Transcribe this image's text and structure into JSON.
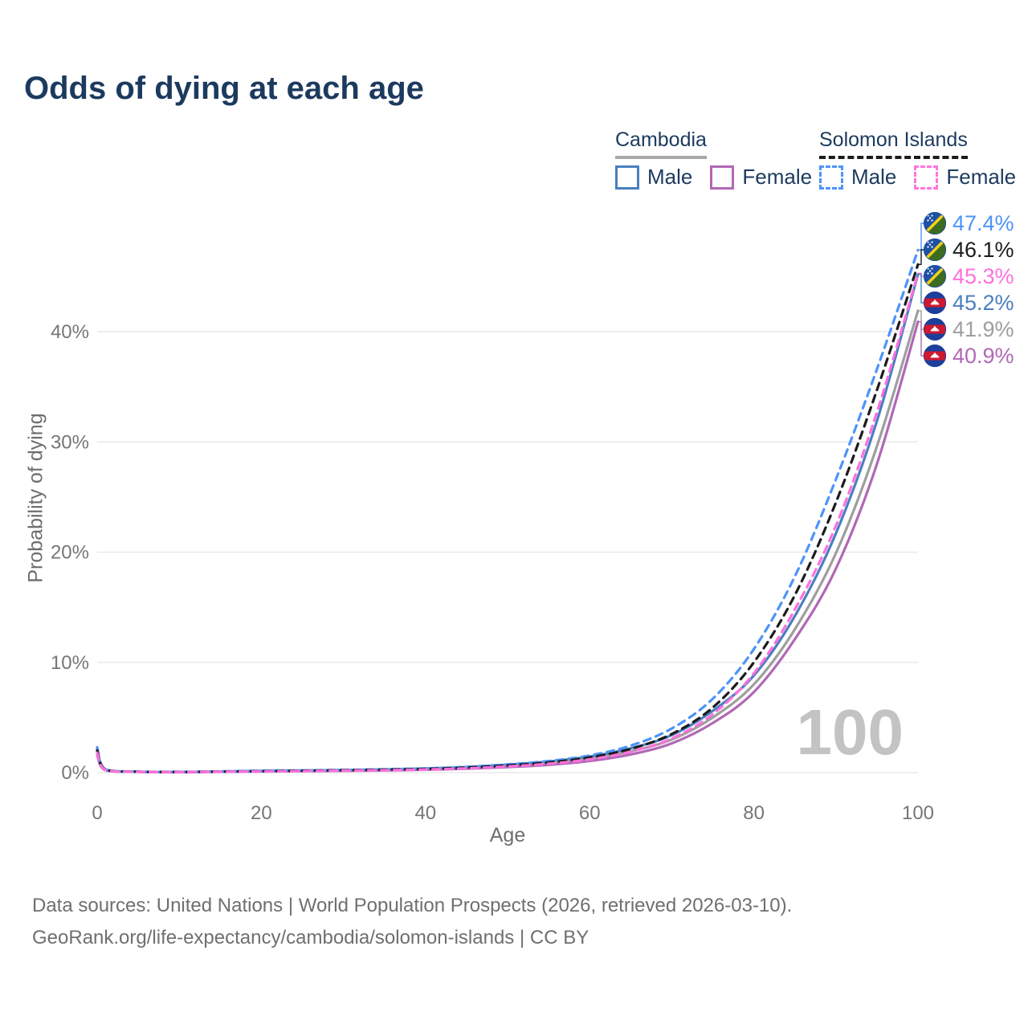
{
  "title": "Odds of dying at each age",
  "watermark": "100",
  "legend": {
    "groups": [
      {
        "name": "Cambodia",
        "line_style": "solid",
        "underline_color": "#a8a8a8",
        "items": [
          {
            "label": "Male",
            "color": "#4a7fc1"
          },
          {
            "label": "Female",
            "color": "#b168b5"
          }
        ]
      },
      {
        "name": "Solomon Islands",
        "line_style": "dashed",
        "underline_color": "#1c1c1c",
        "items": [
          {
            "label": "Male",
            "color": "#4d94f9"
          },
          {
            "label": "Female",
            "color": "#ff74de"
          }
        ]
      }
    ]
  },
  "footer": {
    "line1": "Data sources: United Nations | World Population Prospects (2026, retrieved 2026-03-10).",
    "line2": "GeoRank.org/life-expectancy/cambodia/solomon-islands | CC BY"
  },
  "chart_data": {
    "type": "line",
    "title": "Odds of dying at each age",
    "xlabel": "Age",
    "ylabel": "Probability of dying",
    "xlim": [
      0,
      100
    ],
    "ylim": [
      0,
      50
    ],
    "grid": true,
    "legend_position": "top-right",
    "x_ticks": [
      0,
      20,
      40,
      60,
      80,
      100
    ],
    "y_ticks": [
      {
        "value": 0,
        "label": "0%"
      },
      {
        "value": 10,
        "label": "10%"
      },
      {
        "value": 20,
        "label": "20%"
      },
      {
        "value": 30,
        "label": "30%"
      },
      {
        "value": 40,
        "label": "40%"
      }
    ],
    "ages": [
      0,
      1,
      5,
      10,
      15,
      20,
      25,
      30,
      35,
      40,
      45,
      50,
      55,
      60,
      65,
      70,
      75,
      80,
      85,
      90,
      95,
      100
    ],
    "series": [
      {
        "name": "Solomon Islands Male",
        "country": "Solomon Islands",
        "sex": "Male",
        "color": "#4d94f9",
        "dashed": true,
        "flag": "solomon",
        "end_label": "47.4%",
        "values": [
          2.3,
          0.3,
          0.09,
          0.07,
          0.11,
          0.16,
          0.2,
          0.24,
          0.3,
          0.38,
          0.52,
          0.75,
          1.05,
          1.55,
          2.45,
          4.0,
          6.7,
          11.2,
          17.8,
          26.6,
          36.6,
          47.4
        ]
      },
      {
        "name": "Solomon Islands Both sexes",
        "country": "Solomon Islands",
        "sex": "Both",
        "color": "#1c1c1c",
        "dashed": true,
        "flag": "solomon",
        "end_label": "46.1%",
        "values": [
          2.0,
          0.27,
          0.08,
          0.06,
          0.09,
          0.13,
          0.17,
          0.21,
          0.26,
          0.33,
          0.45,
          0.65,
          0.92,
          1.38,
          2.15,
          3.5,
          5.9,
          10.0,
          16.1,
          24.5,
          34.7,
          46.1
        ]
      },
      {
        "name": "Solomon Islands Female",
        "country": "Solomon Islands",
        "sex": "Female",
        "color": "#ff70dd",
        "dashed": true,
        "flag": "solomon",
        "end_label": "45.3%",
        "values": [
          1.8,
          0.24,
          0.07,
          0.05,
          0.08,
          0.11,
          0.14,
          0.18,
          0.22,
          0.28,
          0.38,
          0.56,
          0.8,
          1.2,
          1.9,
          3.1,
          5.3,
          9.0,
          14.8,
          22.4,
          32.7,
          45.3
        ]
      },
      {
        "name": "Cambodia Male",
        "country": "Cambodia",
        "sex": "Male",
        "color": "#4a7fc1",
        "dashed": false,
        "flag": "cambodia",
        "end_label": "45.2%",
        "values": [
          2.2,
          0.3,
          0.09,
          0.06,
          0.1,
          0.15,
          0.19,
          0.23,
          0.29,
          0.37,
          0.5,
          0.72,
          1.0,
          1.45,
          2.2,
          3.4,
          5.6,
          8.8,
          14.2,
          21.7,
          31.9,
          45.2
        ]
      },
      {
        "name": "Cambodia Both sexes",
        "country": "Cambodia",
        "sex": "Both",
        "color": "#9e9e9e",
        "dashed": false,
        "flag": "cambodia",
        "end_label": "41.9%",
        "values": [
          1.9,
          0.26,
          0.08,
          0.05,
          0.09,
          0.12,
          0.16,
          0.2,
          0.25,
          0.32,
          0.43,
          0.61,
          0.85,
          1.25,
          1.92,
          3.0,
          5.0,
          8.0,
          13.0,
          19.9,
          29.6,
          41.9
        ]
      },
      {
        "name": "Cambodia Female",
        "country": "Cambodia",
        "sex": "Female",
        "color": "#b168b5",
        "dashed": false,
        "flag": "cambodia",
        "end_label": "40.9%",
        "values": [
          1.6,
          0.22,
          0.07,
          0.04,
          0.07,
          0.1,
          0.13,
          0.16,
          0.2,
          0.26,
          0.35,
          0.5,
          0.7,
          1.05,
          1.65,
          2.65,
          4.5,
          7.3,
          12.1,
          18.5,
          28.0,
          40.9
        ]
      }
    ]
  }
}
